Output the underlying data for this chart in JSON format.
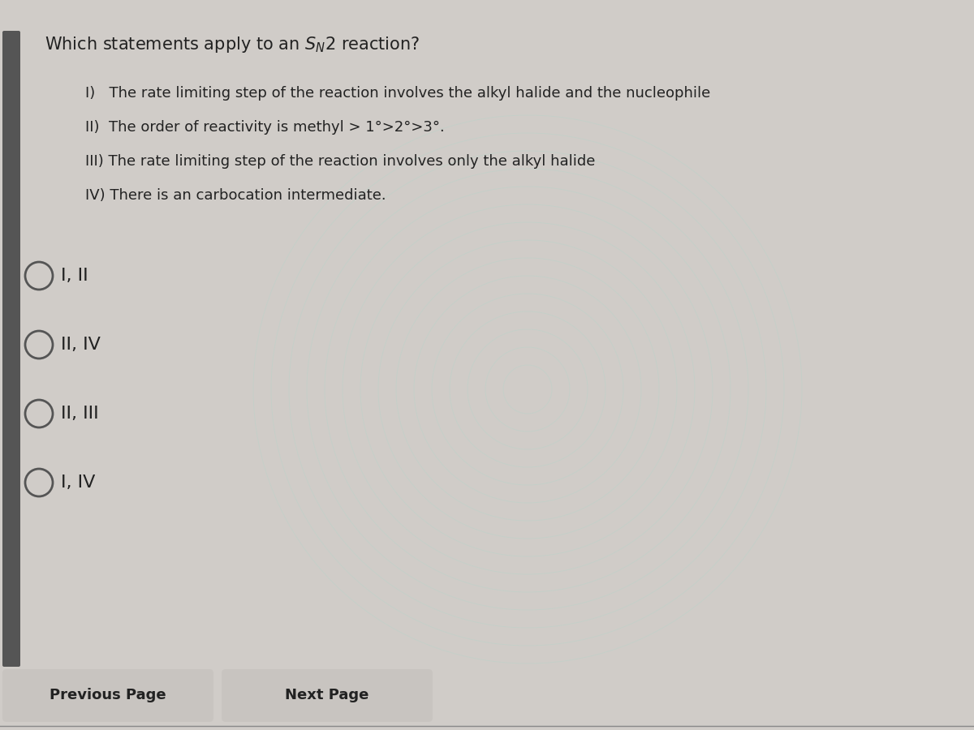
{
  "bg_color": "#d0ccc8",
  "statements": [
    "I)   The rate limiting step of the reaction involves the alkyl halide and the nucleophile",
    "II)  The order of reactivity is methyl > 1°>2°>3°.",
    "III) The rate limiting step of the reaction involves only the alkyl halide",
    "IV) There is an carbocation intermediate."
  ],
  "options": [
    "I, II",
    "II, IV",
    "II, III",
    "I, IV"
  ],
  "button_bg": "#c8c4c0",
  "button_text_prev": "Previous Page",
  "button_text_next": "Next Page",
  "left_bar_color": "#555555",
  "text_color": "#222222",
  "circle_color": "#555555",
  "title_fontsize": 15,
  "statement_fontsize": 13,
  "option_fontsize": 16,
  "concentric_color": "#b8d4c8",
  "separator_color": "#888888"
}
